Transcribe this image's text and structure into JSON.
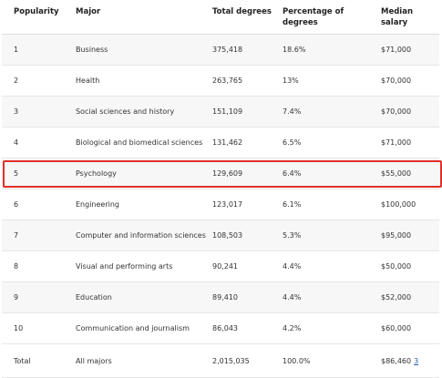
{
  "table": {
    "headers": [
      "Popularity",
      "Major",
      "Total degrees",
      "Percentage of degrees",
      "Median salary"
    ],
    "rows": [
      [
        "1",
        "Business",
        "375,418",
        "18.6%",
        "$71,000"
      ],
      [
        "2",
        "Health",
        "263,765",
        "13%",
        "$70,000"
      ],
      [
        "3",
        "Social sciences and history",
        "151,109",
        "7.4%",
        "$70,000"
      ],
      [
        "4",
        "Biological and biomedical sciences",
        "131,462",
        "6.5%",
        "$71,000"
      ],
      [
        "5",
        "Psychology",
        "129,609",
        "6.4%",
        "$55,000"
      ],
      [
        "6",
        "Engineering",
        "123,017",
        "6.1%",
        "$100,000"
      ],
      [
        "7",
        "Computer and information sciences",
        "108,503",
        "5.3%",
        "$95,000"
      ],
      [
        "8",
        "Visual and performing arts",
        "90,241",
        "4.4%",
        "$50,000"
      ],
      [
        "9",
        "Education",
        "89,410",
        "4.4%",
        "$52,000"
      ],
      [
        "10",
        "Communication and journalism",
        "86,043",
        "4.2%",
        "$60,000"
      ]
    ],
    "total": [
      "Total",
      "All majors",
      "2,015,035",
      "100.0%",
      "$86,460"
    ],
    "total_footnote": "3",
    "highlighted_row": 4
  }
}
